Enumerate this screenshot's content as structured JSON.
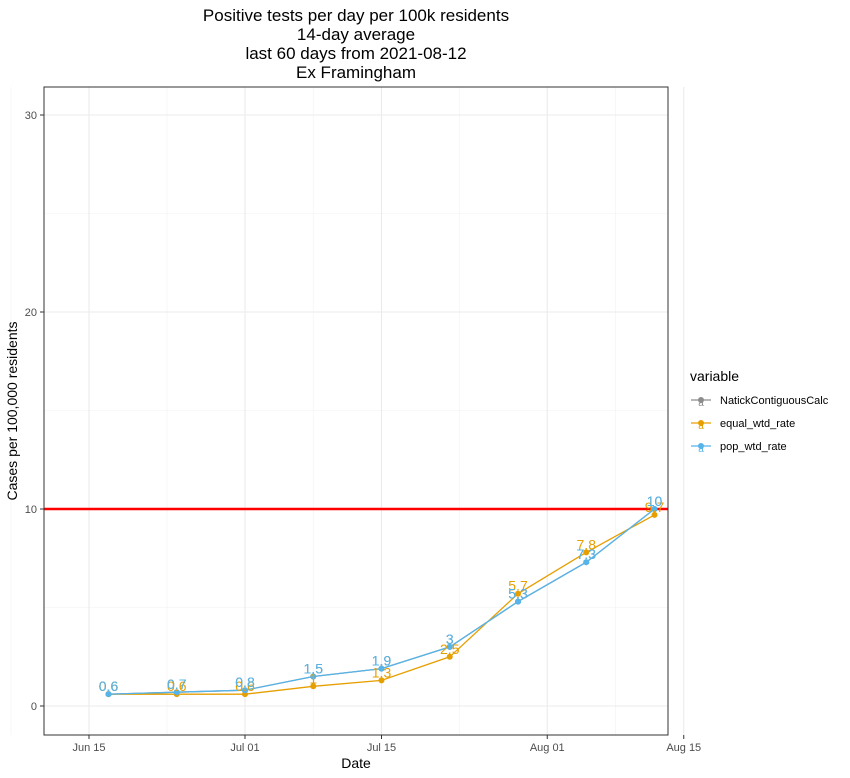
{
  "chart_data": {
    "type": "line",
    "title": [
      "Positive tests per day per 100k residents",
      "14-day average",
      "last 60 days from 2021-08-12",
      "Ex Framingham"
    ],
    "xlabel": "Date",
    "ylabel": "Cases per 100,000 residents",
    "x_ticks": [
      "Jun 15",
      "Jul 01",
      "Jul 15",
      "Aug 01",
      "Aug 15"
    ],
    "y_ticks": [
      "0",
      "10",
      "20",
      "30"
    ],
    "ylim": [
      -1.5,
      31.5
    ],
    "grid": true,
    "reference_line": {
      "y": 10,
      "color": "#ff0000"
    },
    "legend": {
      "title": "variable",
      "position": "right",
      "entries": [
        "NatickContiguousCalc",
        "equal_wtd_rate",
        "pop_wtd_rate"
      ]
    },
    "x": [
      "2021-06-17",
      "2021-06-24",
      "2021-07-01",
      "2021-07-08",
      "2021-07-15",
      "2021-07-22",
      "2021-07-29",
      "2021-08-05",
      "2021-08-12"
    ],
    "series": [
      {
        "name": "NatickContiguousCalc",
        "color": "#8c8c8c",
        "values": [
          0.6,
          0.7,
          0.8,
          1.5,
          1.9,
          3.0,
          5.3,
          7.3,
          10.0
        ],
        "labels": [
          "0.6",
          "0.7",
          "0.8",
          "1.5",
          "1.9",
          "3",
          "5.3",
          "7.3",
          "10"
        ]
      },
      {
        "name": "equal_wtd_rate",
        "color": "#e69f00",
        "values": [
          0.6,
          0.6,
          0.6,
          1.0,
          1.3,
          2.5,
          5.7,
          7.8,
          9.7
        ],
        "labels": [
          "0.6",
          "0.6",
          "0.6",
          "1",
          "1.3",
          "2.5",
          "5.7",
          "7.8",
          "9.7"
        ]
      },
      {
        "name": "pop_wtd_rate",
        "color": "#56b4e9",
        "values": [
          0.6,
          0.7,
          0.8,
          1.5,
          1.9,
          3.0,
          5.3,
          7.3,
          10.0
        ],
        "labels": [
          "0.6",
          "0.7",
          "0.8",
          "1.5",
          "1.9",
          "3",
          "5.3",
          "7.3",
          "10"
        ]
      }
    ]
  }
}
